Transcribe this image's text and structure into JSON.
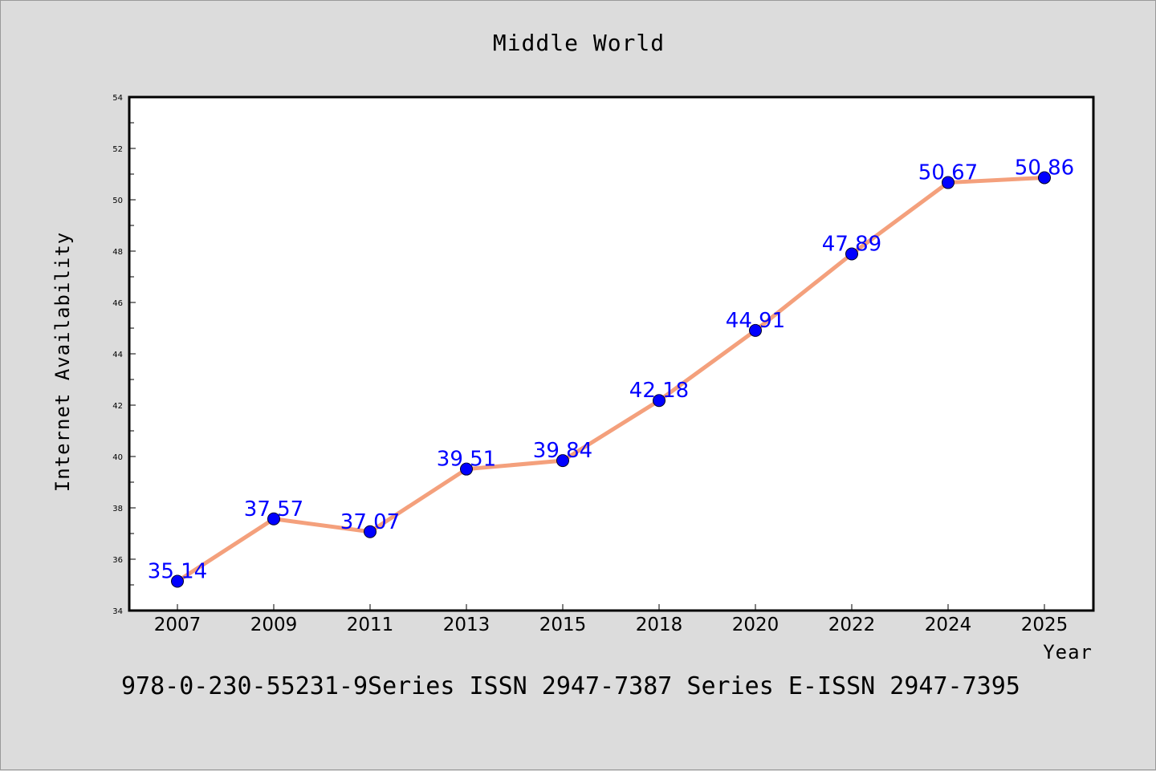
{
  "chart_data": {
    "type": "line",
    "title": "Middle World",
    "xlabel": "Year",
    "ylabel": "Internet Availability",
    "categories": [
      "2007",
      "2009",
      "2011",
      "2013",
      "2015",
      "2018",
      "2020",
      "2022",
      "2024",
      "2025"
    ],
    "series": [
      {
        "values": [
          35.14,
          37.57,
          37.07,
          39.51,
          39.84,
          42.18,
          44.91,
          47.89,
          50.67,
          50.86
        ],
        "data_labels": [
          "35.14",
          "37.57",
          "37.07",
          "39.51",
          "39.84",
          "42.18",
          "44.91",
          "47.89",
          "50.67",
          "50.86"
        ],
        "line_color": "#f4a07c",
        "marker_color": "#0000ff"
      }
    ],
    "ylim": [
      34,
      54
    ],
    "yticks": [
      "34",
      "36",
      "38",
      "40",
      "42",
      "44",
      "46",
      "48",
      "50",
      "52",
      "54"
    ],
    "grid": false,
    "legend": "none"
  },
  "footer": {
    "text": "978-0-230-55231-9Series ISSN 2947-7387 Series E-ISSN 2947-7395"
  },
  "colors": {
    "background": "#dcdcdc",
    "plot_background": "#ffffff",
    "data_label": "#0000ff"
  }
}
